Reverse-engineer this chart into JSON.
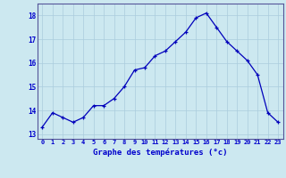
{
  "x": [
    0,
    1,
    2,
    3,
    4,
    5,
    6,
    7,
    8,
    9,
    10,
    11,
    12,
    13,
    14,
    15,
    16,
    17,
    18,
    19,
    20,
    21,
    22,
    23
  ],
  "y": [
    13.3,
    13.9,
    13.7,
    13.5,
    13.7,
    14.2,
    14.2,
    14.5,
    15.0,
    15.7,
    15.8,
    16.3,
    16.5,
    16.9,
    17.3,
    17.9,
    18.1,
    17.5,
    16.9,
    16.5,
    16.1,
    15.5,
    13.9,
    13.5
  ],
  "line_color": "#0000bb",
  "marker": "+",
  "marker_size": 3.5,
  "bg_color": "#cce8f0",
  "grid_color": "#aaccdd",
  "xlabel": "Graphe des températures (°c)",
  "xlabel_color": "#0000cc",
  "tick_color": "#0000cc",
  "ylim": [
    12.8,
    18.5
  ],
  "xlim": [
    -0.5,
    23.5
  ],
  "yticks": [
    13,
    14,
    15,
    16,
    17,
    18
  ],
  "xticks": [
    0,
    1,
    2,
    3,
    4,
    5,
    6,
    7,
    8,
    9,
    10,
    11,
    12,
    13,
    14,
    15,
    16,
    17,
    18,
    19,
    20,
    21,
    22,
    23
  ]
}
